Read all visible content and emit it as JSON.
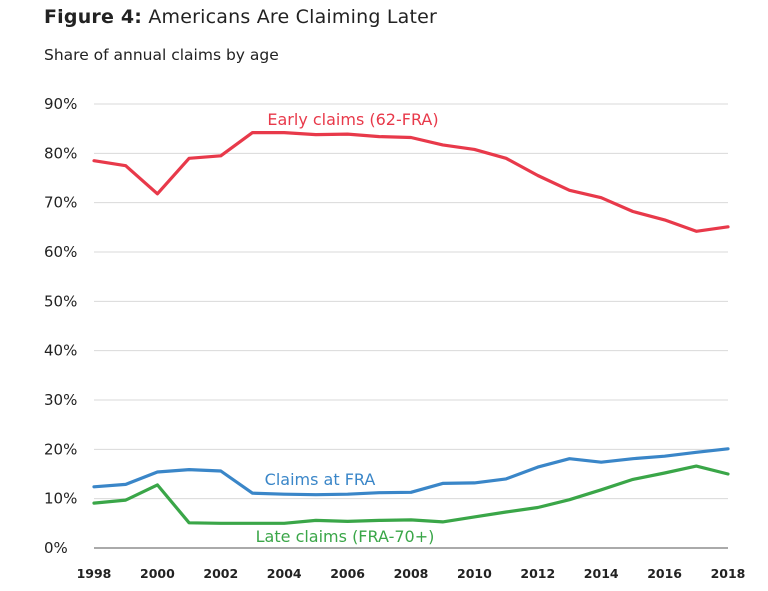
{
  "figure": {
    "prefix": "Figure 4:",
    "title": "Americans Are Claiming Later",
    "subtitle": "Share of annual claims by age"
  },
  "chart_data": {
    "type": "line",
    "title": "Figure 4: Americans Are Claiming Later",
    "subtitle": "Share of annual claims by age",
    "xlabel": "",
    "ylabel": "",
    "x": [
      1998,
      1999,
      2000,
      2001,
      2002,
      2003,
      2004,
      2005,
      2006,
      2007,
      2008,
      2009,
      2010,
      2011,
      2012,
      2013,
      2014,
      2015,
      2016,
      2017,
      2018
    ],
    "xticks": [
      "1998",
      "2000",
      "2002",
      "2004",
      "2006",
      "2008",
      "2010",
      "2012",
      "2014",
      "2016",
      "2018"
    ],
    "ylim": [
      0,
      90
    ],
    "yticks": [
      "0%",
      "10%",
      "20%",
      "30%",
      "40%",
      "50%",
      "60%",
      "70%",
      "80%",
      "90%"
    ],
    "grid": true,
    "series": [
      {
        "name": "Early claims (62-FRA)",
        "color": "#e8394a",
        "values": [
          78.5,
          77.5,
          71.8,
          79,
          79.5,
          84.2,
          84.2,
          83.8,
          83.9,
          83.4,
          83.2,
          81.7,
          80.8,
          79,
          75.5,
          72.5,
          71,
          68.2,
          66.5,
          64.2,
          65.1
        ]
      },
      {
        "name": "Claims at FRA",
        "color": "#3a86c8",
        "values": [
          12.4,
          12.9,
          15.4,
          15.9,
          15.6,
          11.1,
          10.9,
          10.8,
          10.9,
          11.2,
          11.3,
          13.1,
          13.2,
          14,
          16.4,
          18.1,
          17.4,
          18.1,
          18.6,
          19.4,
          20.1
        ]
      },
      {
        "name": "Late claims (FRA-70+)",
        "color": "#3aa648",
        "values": [
          9.1,
          9.7,
          12.8,
          5.1,
          5,
          5,
          5,
          5.6,
          5.4,
          5.6,
          5.7,
          5.3,
          6.3,
          7.3,
          8.2,
          9.8,
          11.8,
          13.9,
          15.2,
          16.6,
          15
        ]
      }
    ]
  }
}
